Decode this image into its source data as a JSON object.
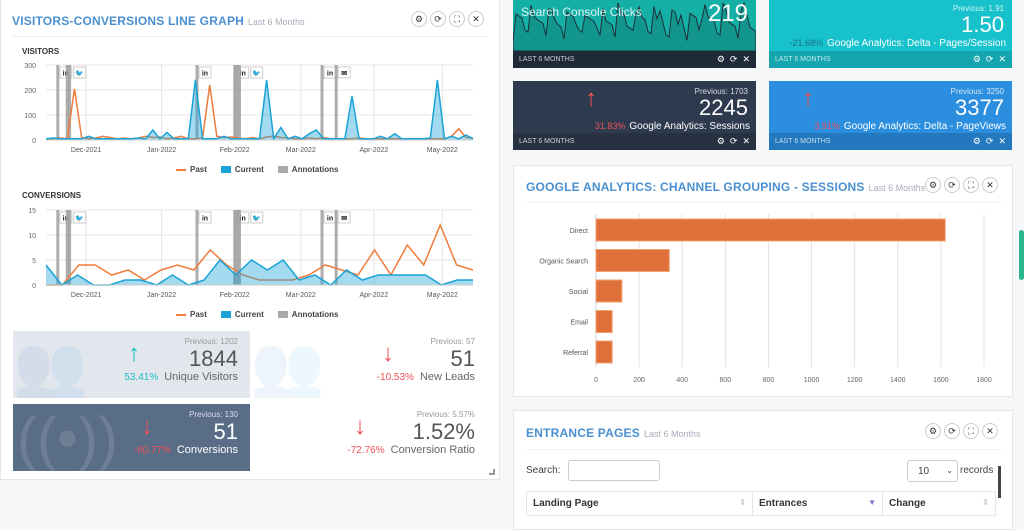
{
  "left_panel": {
    "title": "VISITORS-CONVERSIONS LINE GRAPH",
    "subtitle": "Last 6 Months"
  },
  "controls": {
    "settings": "⚙",
    "refresh": "⟳",
    "expand": "⛶",
    "close": "✕"
  },
  "chart_data": [
    {
      "type": "line",
      "title": "VISITORS",
      "x_unit": "day index (every 3 days from mid-Nov 2021)",
      "ylim": [
        0,
        300
      ],
      "yticks": [
        "0",
        "100",
        "200",
        "300"
      ],
      "xticks": [
        {
          "label": "Dec-2021",
          "day": 17
        },
        {
          "label": "Jan-2022",
          "day": 49
        },
        {
          "label": "Feb-2022",
          "day": 80
        },
        {
          "label": "Mar-2022",
          "day": 108
        },
        {
          "label": "Apr-2022",
          "day": 139
        },
        {
          "label": "May-2022",
          "day": 168
        }
      ],
      "series": [
        {
          "name": "Past",
          "color": "#f07c3c",
          "values": [
            5,
            5,
            8,
            5,
            205,
            10,
            5,
            8,
            15,
            10,
            5,
            8,
            5,
            8,
            15,
            10,
            12,
            5,
            8,
            15,
            5,
            5,
            8,
            220,
            15,
            10,
            12,
            8,
            5,
            10,
            5,
            12,
            15,
            10,
            8,
            5,
            5,
            8,
            5,
            10,
            5,
            5,
            5,
            5,
            8,
            5,
            5,
            5,
            5,
            5,
            5,
            5,
            5,
            5,
            5,
            5,
            5,
            15,
            45,
            10,
            8
          ]
        },
        {
          "name": "Current",
          "color": "#1aa3d6",
          "values": [
            5,
            8,
            5,
            5,
            5,
            5,
            15,
            5,
            5,
            5,
            5,
            5,
            5,
            8,
            5,
            40,
            5,
            30,
            5,
            5,
            5,
            240,
            5,
            5,
            5,
            15,
            5,
            5,
            5,
            5,
            5,
            240,
            5,
            50,
            5,
            15,
            5,
            25,
            40,
            5,
            5,
            5,
            5,
            175,
            5,
            5,
            5,
            15,
            5,
            25,
            5,
            5,
            5,
            5,
            8,
            240,
            5,
            15,
            5,
            20,
            5
          ]
        },
        {
          "name": "Annotations",
          "color": "#999"
        }
      ],
      "annotations": [
        {
          "day": 5,
          "icon": "in"
        },
        {
          "day": 9,
          "icon": "twitter"
        },
        {
          "day": 10,
          "icon": ""
        },
        {
          "day": 64,
          "icon": "in"
        },
        {
          "day": 80,
          "icon": "in"
        },
        {
          "day": 81,
          "icon": "twitter"
        },
        {
          "day": 82,
          "icon": ""
        },
        {
          "day": 117,
          "icon": "in"
        },
        {
          "day": 123,
          "icon": "mail"
        }
      ]
    },
    {
      "type": "line",
      "title": "CONVERSIONS",
      "ylim": [
        0,
        15
      ],
      "yticks": [
        "0",
        "5",
        "10",
        "15"
      ],
      "xticks": [
        {
          "label": "Dec-2021",
          "day": 17
        },
        {
          "label": "Jan-2022",
          "day": 49
        },
        {
          "label": "Feb-2022",
          "day": 80
        },
        {
          "label": "Mar-2022",
          "day": 108
        },
        {
          "label": "Apr-2022",
          "day": 139
        },
        {
          "label": "May-2022",
          "day": 168
        }
      ],
      "series": [
        {
          "name": "Past",
          "color": "#f07c3c",
          "values": [
            0,
            0,
            4,
            4,
            2,
            3,
            1,
            3,
            4,
            3,
            7,
            4,
            2,
            1,
            1,
            1,
            2,
            4,
            3,
            2,
            7,
            2,
            8,
            4,
            12,
            4,
            3
          ]
        },
        {
          "name": "Current",
          "color": "#1aa3d6",
          "values": [
            4,
            0,
            2,
            0,
            0,
            1,
            1,
            0,
            2,
            0,
            1,
            5,
            2,
            5,
            3,
            5,
            1,
            2,
            0,
            3,
            1,
            2,
            2,
            2,
            2,
            0,
            1,
            1
          ]
        },
        {
          "name": "Annotations",
          "color": "#999"
        }
      ],
      "annotations": [
        {
          "day": 5,
          "icon": "in"
        },
        {
          "day": 9,
          "icon": "twitter"
        },
        {
          "day": 10,
          "icon": ""
        },
        {
          "day": 64,
          "icon": "in"
        },
        {
          "day": 80,
          "icon": "in"
        },
        {
          "day": 81,
          "icon": "twitter"
        },
        {
          "day": 82,
          "icon": ""
        },
        {
          "day": 117,
          "icon": "in"
        },
        {
          "day": 123,
          "icon": "mail"
        }
      ]
    },
    {
      "type": "bar",
      "orientation": "horizontal",
      "title": "GOOGLE ANALYTICS: CHANNEL GROUPING - SESSIONS",
      "categories": [
        "Direct",
        "Organic Search",
        "Social",
        "Email",
        "Referral"
      ],
      "values": [
        1620,
        340,
        120,
        75,
        75
      ],
      "xlim": [
        0,
        1800
      ],
      "xticks": [
        "0",
        "200",
        "400",
        "600",
        "800",
        "1000",
        "1200",
        "1400",
        "1600",
        "1800"
      ],
      "color": "#e0703a"
    }
  ],
  "legend": {
    "past": "Past",
    "current": "Current",
    "annotations": "Annotations"
  },
  "kpis": [
    {
      "previous": "Previous: 1202",
      "value": "1844",
      "label": "Unique Visitors",
      "change": "53.41%",
      "direction": "up"
    },
    {
      "previous": "Previous: 57",
      "value": "51",
      "label": "New Leads",
      "change": "-10.53%",
      "direction": "down"
    },
    {
      "previous": "Previous: 130",
      "value": "51",
      "label": "Conversions",
      "change": "-60.77%",
      "direction": "down"
    },
    {
      "previous": "Previous: 5.57%",
      "value": "1.52%",
      "label": "Conversion Ratio",
      "change": "-72.76%",
      "direction": "down"
    }
  ],
  "tiles": [
    {
      "label": "Search Console Clicks",
      "value": "219",
      "footer": "LAST 6 MONTHS",
      "color": "#14b0a6"
    },
    {
      "previous": "Previous: 1.91",
      "value": "1.50",
      "label": "Google Analytics: Delta - Pages/Session",
      "change": "-21.68%",
      "footer": "LAST 6 MONTHS",
      "color": "#18c2cd"
    },
    {
      "previous": "Previous: 1703",
      "value": "2245",
      "label": "Google Analytics: Sessions",
      "change": "31.83%",
      "footer": "LAST 6 MONTHS",
      "color": "#2e3a4e"
    },
    {
      "previous": "Previous: 3250",
      "value": "3377",
      "label": "Google Analytics: Delta - PageViews",
      "change": "3.91%",
      "footer": "LAST 6 MONTHS",
      "color": "#2b8ede"
    }
  ],
  "channel_panel": {
    "title": "GOOGLE ANALYTICS: CHANNEL GROUPING - SESSIONS",
    "subtitle": "Last 6 Months"
  },
  "entrance_panel": {
    "title": "ENTRANCE PAGES",
    "subtitle": "Last 6 Months",
    "search_label": "Search:",
    "search_value": "",
    "page_size": "10",
    "records_label": "records",
    "columns": [
      "Landing Page",
      "Entrances",
      "Change"
    ]
  }
}
